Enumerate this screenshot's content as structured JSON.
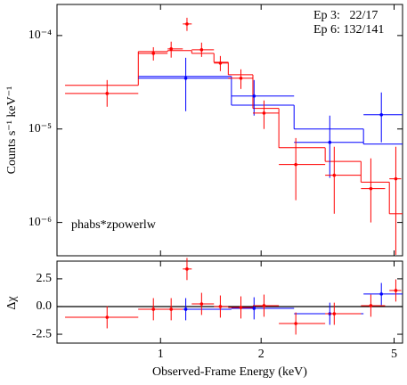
{
  "chart_data": [
    {
      "type": "spectrum",
      "ylabel": "Counts s⁻¹ keV⁻¹",
      "annotation": "phabs*zpowerlw",
      "log_x": true,
      "log_y": true,
      "legend": "upper right",
      "xlim": [
        0.49,
        5.3
      ],
      "ylim": [
        4.4e-07,
        0.000215
      ],
      "yticks": [
        {
          "value": 1e-06,
          "label": "10⁻⁶"
        },
        {
          "value": 1e-05,
          "label": "10⁻⁵"
        },
        {
          "value": 0.0001,
          "label": "10⁻⁴"
        }
      ],
      "series": [
        {
          "name": "Ep 3:   22/17",
          "color": "#0000ff",
          "x": [
            1.19,
            1.905,
            3.21,
            4.58
          ],
          "x_low": [
            0.858,
            1.63,
            2.51,
            4.05
          ],
          "x_high": [
            1.63,
            2.51,
            4.05,
            5.3
          ],
          "values": [
            3.49e-05,
            2.25e-05,
            7.2e-06,
            1.42e-05
          ],
          "y_low": [
            1.55e-05,
            1.39e-05,
            3e-06,
            7.2e-06
          ],
          "y_high": [
            5.78e-05,
            3.34e-05,
            1.39e-05,
            2.46e-05
          ]
        },
        {
          "name": "Ep 6: 132/141",
          "color": "#ff0000",
          "x": [
            0.692,
            0.952,
            1.076,
            1.2,
            1.327,
            1.51,
            1.74,
            2.04,
            2.54,
            3.31,
            4.26,
            5.06
          ],
          "x_low": [
            0.518,
            0.858,
            1.05,
            1.166,
            1.24,
            1.445,
            1.595,
            1.89,
            2.26,
            3.11,
            3.98,
            4.84
          ],
          "x_high": [
            0.858,
            1.05,
            1.166,
            1.24,
            1.445,
            1.595,
            1.89,
            2.26,
            3.11,
            3.98,
            4.7,
            5.25
          ],
          "values": [
            2.4e-05,
            6.45e-05,
            7.2e-05,
            0.000133,
            7.04e-05,
            5.07e-05,
            3.49e-05,
            1.48e-05,
            4.16e-06,
            3.2e-06,
            2.3e-06,
            2.93e-06
          ],
          "y_low": [
            1.73e-05,
            5.4e-05,
            5.8e-05,
            0.000112,
            5.9e-05,
            4.16e-05,
            2.68e-05,
            1e-05,
            1.73e-06,
            1.24e-06,
            1e-06,
            4.5e-07
          ],
          "y_high": [
            3.34e-05,
            7.5e-05,
            8.6e-05,
            0.000155,
            8.4e-05,
            6.04e-05,
            4.35e-05,
            2.02e-05,
            8e-06,
            6.45e-06,
            4.85e-06,
            6.45e-06
          ]
        }
      ],
      "models": [
        {
          "color": "#0000ff",
          "edges": [
            0.858,
            1.63,
            2.51,
            4.05,
            5.3
          ],
          "values": [
            3.65e-05,
            1.8e-05,
            1e-05,
            6.9e-06
          ]
        },
        {
          "color": "#ff0000",
          "edges": [
            0.518,
            0.858,
            1.05,
            1.24,
            1.445,
            1.595,
            1.89,
            2.26,
            3.11,
            3.98,
            4.84,
            5.3
          ],
          "values": [
            2.93e-05,
            6.74e-05,
            6.9e-05,
            6.45e-05,
            5.18e-05,
            3.8e-05,
            1.66e-05,
            6.3e-06,
            4.5e-06,
            2.7e-06,
            1.24e-06
          ]
        }
      ]
    },
    {
      "type": "residual",
      "ylabel": "Δχ",
      "xlabel": "Observed-Frame Energy (keV)",
      "log_x": true,
      "xlim": [
        0.49,
        5.3
      ],
      "ylim": [
        -3.3,
        4.1
      ],
      "xticks": [
        1,
        2,
        5
      ],
      "yticks": [
        -2.5,
        {
          "value": 0,
          "label": "0.0"
        },
        2.5
      ],
      "series": [
        {
          "color": "#0000ff",
          "x": [
            1.19,
            1.905,
            3.21,
            4.58
          ],
          "x_low": [
            0.858,
            1.63,
            2.51,
            4.05
          ],
          "x_high": [
            1.63,
            2.51,
            4.05,
            5.3
          ],
          "values": [
            -0.24,
            -0.16,
            -0.65,
            1.13
          ],
          "yerr": [
            1,
            1,
            1,
            1
          ]
        },
        {
          "color": "#ff0000",
          "x": [
            0.692,
            0.952,
            1.076,
            1.2,
            1.327,
            1.51,
            1.74,
            2.04,
            2.54,
            3.31,
            4.26,
            5.06
          ],
          "x_low": [
            0.518,
            0.858,
            1.05,
            1.166,
            1.24,
            1.445,
            1.595,
            1.89,
            2.26,
            3.11,
            3.98,
            4.84
          ],
          "x_high": [
            0.858,
            1.05,
            1.166,
            1.24,
            1.445,
            1.595,
            1.89,
            2.26,
            3.11,
            3.98,
            4.7,
            5.25
          ],
          "values": [
            -0.97,
            -0.24,
            -0.24,
            3.39,
            0.24,
            0,
            -0.08,
            0.08,
            -1.53,
            -0.65,
            0.08,
            1.45
          ],
          "yerr": [
            1,
            1,
            1,
            1,
            1,
            1,
            1,
            1,
            1,
            1,
            1,
            1
          ]
        }
      ]
    }
  ]
}
